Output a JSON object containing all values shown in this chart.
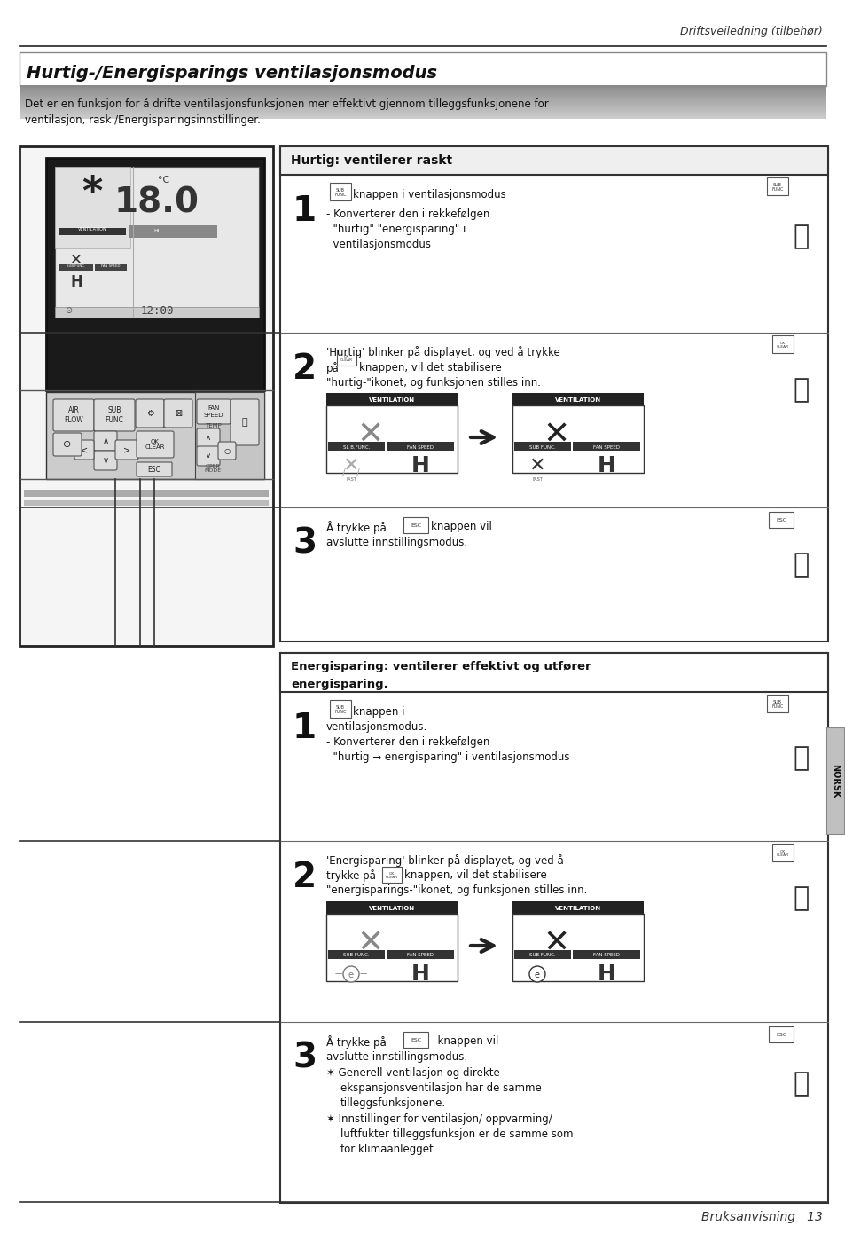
{
  "page_title": "Driftsveiledning (tilbehør)",
  "section_title": "Hurtig-/Energisparings ventilasjonsmodus",
  "intro_text": "Det er en funksjon for å drifte ventilasjonsfunksjonen mer effektivt gjennom tilleggsfunksjonene for\nventilasjon, rask /Energisparingsinnstillinger.",
  "footer_text": "Bruksanvisning   13",
  "hurtig_header": "Hurtig: ventilerer raskt",
  "energi_header_line1": "Energisparing: ventilerer effektivt og utfører",
  "energi_header_line2": "energisparing.",
  "norsk_tab": "NORSK",
  "bg_color": "#ffffff"
}
